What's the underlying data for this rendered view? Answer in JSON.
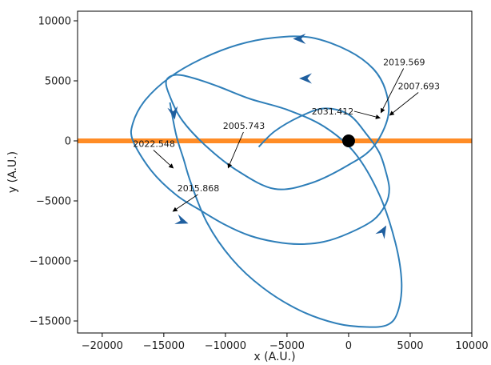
{
  "chart_data": {
    "type": "line",
    "title": "",
    "xlabel": "x (A.U.)",
    "ylabel": "y (A.U.)",
    "xlim": [
      -22000,
      10000
    ],
    "ylim": [
      -16000,
      10800
    ],
    "xticks": [
      -20000,
      -15000,
      -10000,
      -5000,
      0,
      5000,
      10000
    ],
    "yticks": [
      -15000,
      -10000,
      -5000,
      0,
      5000,
      10000
    ],
    "xtick_labels": [
      "−20000",
      "−15000",
      "−10000",
      "−5000",
      "0",
      "5000",
      "10000"
    ],
    "ytick_labels": [
      "−15000",
      "−10000",
      "−5000",
      "0",
      "5000",
      "10000"
    ],
    "grid": false,
    "legend": "none",
    "colors": {
      "orbit": "#2f7fb9",
      "arrow": "#1f5f9f",
      "band": "#ff7f0e",
      "central_mass": "#000000"
    },
    "central_mass": {
      "x": 0,
      "y": 0
    },
    "orbit": {
      "x": [
        -7300,
        -6000,
        -4000,
        -2000,
        0,
        1500,
        2500,
        3000,
        3300,
        3000,
        2000,
        0,
        -2000,
        -4000,
        -6000,
        -8000,
        -10000,
        -12000,
        -14000,
        -16000,
        -17500,
        -17500,
        -16500,
        -14500,
        -12000,
        -9000,
        -6000,
        -3000,
        0,
        2000,
        3000,
        3200,
        2000,
        0,
        -3000,
        -6000,
        -9000,
        -11500,
        -13500,
        -14500,
        -14800,
        -14000,
        -12500,
        -10500,
        -8000,
        -5000,
        -2000,
        500,
        2500,
        3800,
        4300,
        4000,
        3200,
        1500,
        -1000,
        -4000,
        -7000,
        -9500,
        -11500,
        -12800,
        -13400,
        -14000,
        -14500
      ],
      "y": [
        -500,
        800,
        2000,
        2700,
        2200,
        500,
        -1000,
        -2500,
        -4000,
        -5300,
        -6600,
        -7700,
        -8400,
        -8600,
        -8400,
        -7900,
        -7000,
        -5800,
        -4500,
        -2500,
        0,
        1500,
        3400,
        5300,
        6800,
        8000,
        8600,
        8600,
        7500,
        6000,
        4200,
        2000,
        -500,
        -2000,
        -3500,
        -4000,
        -2500,
        -500,
        1700,
        3700,
        5000,
        5500,
        5200,
        4500,
        3500,
        2600,
        1200,
        -1000,
        -4500,
        -8500,
        -11800,
        -14200,
        -15300,
        -15500,
        -15200,
        -14100,
        -12200,
        -9800,
        -6800,
        -3500,
        -1500,
        500,
        3200
      ]
    },
    "arrows": [
      {
        "x": -14200,
        "y": 2300,
        "direction_deg": 280
      },
      {
        "x": -4000,
        "y": 8500,
        "direction_deg": 180
      },
      {
        "x": -3500,
        "y": 5200,
        "direction_deg": 180
      },
      {
        "x": -13500,
        "y": -6700,
        "direction_deg": 340
      },
      {
        "x": 2800,
        "y": -7500,
        "direction_deg": 60
      }
    ],
    "annotations": [
      {
        "label": "2031.412",
        "text_x": -3000,
        "text_y": 2200,
        "point_x": 2600,
        "point_y": 1900
      },
      {
        "label": "2019.569",
        "text_x": 2800,
        "text_y": 6300,
        "point_x": 2600,
        "point_y": 2300
      },
      {
        "label": "2007.693",
        "text_x": 4000,
        "text_y": 4300,
        "point_x": 3300,
        "point_y": 2100
      },
      {
        "label": "2005.743",
        "text_x": -10200,
        "text_y": 1000,
        "point_x": -9800,
        "point_y": -2300
      },
      {
        "label": "2022.548",
        "text_x": -17500,
        "text_y": -500,
        "point_x": -14200,
        "point_y": -2300
      },
      {
        "label": "2015.868",
        "text_x": -13900,
        "text_y": -4200,
        "point_x": -14300,
        "point_y": -5900
      }
    ],
    "band": {
      "y_center": 0,
      "half_width": 200,
      "x_min": -22000,
      "x_max": 10000
    }
  }
}
